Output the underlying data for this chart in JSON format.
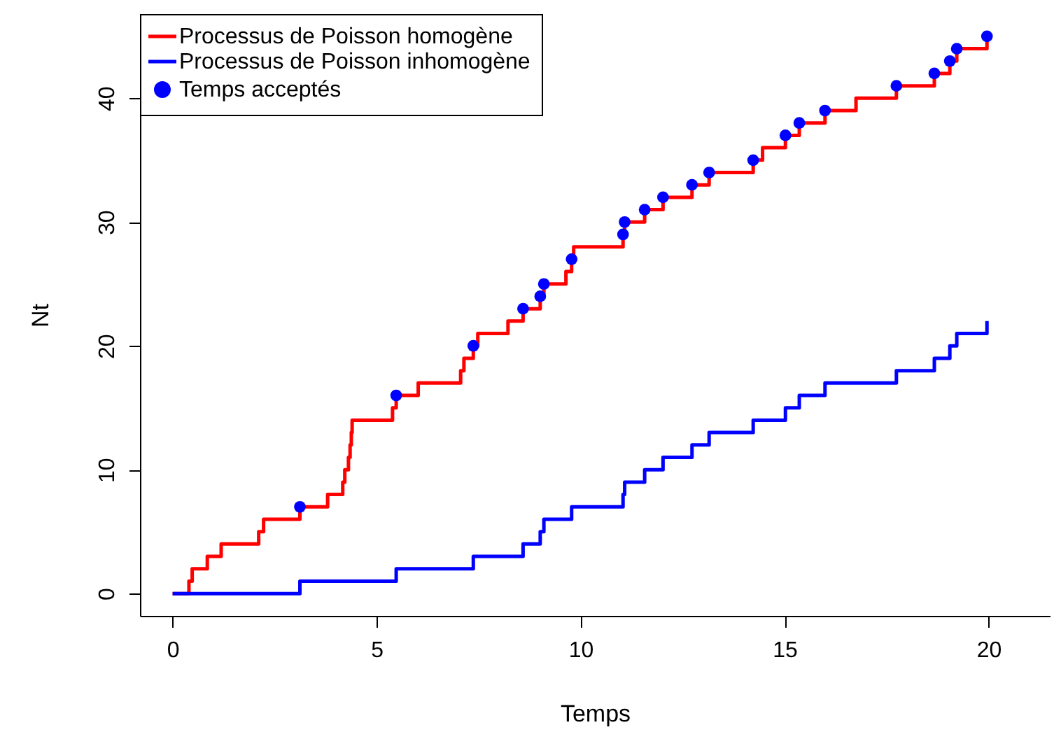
{
  "chart_data": {
    "type": "step",
    "xlabel": "Temps",
    "ylabel": "Nt",
    "xlim": [
      -0.8,
      21.5
    ],
    "xticks": [
      0,
      5,
      10,
      15,
      20
    ],
    "ylim": [
      -1.8,
      46.8
    ],
    "yticks": [
      0,
      10,
      20,
      30,
      40
    ],
    "grid": false,
    "legend": "top left",
    "line_style": "solid",
    "series": [
      {
        "name": "Processus de Poisson homogène",
        "color": "#ff0000",
        "x": [
          0,
          0.4,
          0.48,
          0.85,
          1.19,
          2.11,
          2.23,
          3.12,
          3.8,
          4.17,
          4.22,
          4.31,
          4.35,
          4.38,
          4.4,
          5.39,
          5.48,
          6.02,
          7.06,
          7.14,
          7.37,
          7.48,
          8.22,
          8.59,
          9.01,
          9.1,
          9.64,
          9.78,
          9.83,
          11.04,
          11.08,
          11.57,
          12.02,
          12.73,
          13.15,
          14.23,
          14.46,
          15.02,
          15.36,
          15.99,
          16.75,
          17.74,
          18.67,
          19.05,
          19.22,
          19.96
        ],
        "values": [
          0,
          1,
          2,
          3,
          4,
          5,
          6,
          7,
          8,
          9,
          10,
          11,
          12,
          13,
          14,
          15,
          16,
          17,
          18,
          19,
          20,
          21,
          22,
          23,
          24,
          25,
          26,
          27,
          28,
          29,
          30,
          31,
          32,
          33,
          34,
          35,
          36,
          37,
          38,
          39,
          40,
          41,
          42,
          43,
          44,
          45
        ]
      },
      {
        "name": "Processus de Poisson inhomogène",
        "color": "#0000ff",
        "x": [
          0,
          3.12,
          5.48,
          7.37,
          8.59,
          9.01,
          9.1,
          9.78,
          11.04,
          11.08,
          11.57,
          12.02,
          12.73,
          13.15,
          14.23,
          15.02,
          15.36,
          15.99,
          17.74,
          18.67,
          19.05,
          19.22,
          19.96
        ],
        "values": [
          0,
          1,
          2,
          3,
          4,
          5,
          6,
          7,
          8,
          9,
          10,
          11,
          12,
          13,
          14,
          15,
          16,
          17,
          18,
          19,
          20,
          21,
          22
        ]
      },
      {
        "name": "Temps acceptés",
        "color": "#0000ff",
        "type": "scatter",
        "marker": "circle",
        "x": [
          3.12,
          5.48,
          7.37,
          8.59,
          9.01,
          9.1,
          9.78,
          11.04,
          11.08,
          11.57,
          12.02,
          12.73,
          13.15,
          14.23,
          15.02,
          15.36,
          15.99,
          17.74,
          18.67,
          19.05,
          19.22,
          19.96
        ],
        "values": [
          7,
          16,
          20,
          23,
          24,
          25,
          27,
          29,
          30,
          31,
          32,
          33,
          34,
          35,
          37,
          38,
          39,
          41,
          42,
          43,
          44,
          45
        ]
      }
    ]
  }
}
